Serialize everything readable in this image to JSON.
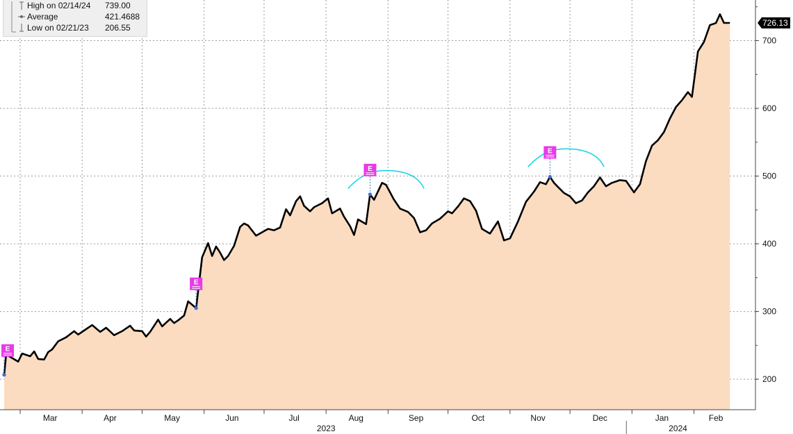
{
  "stats": {
    "high_label": "High on 02/14/24",
    "high_value": "739.00",
    "average_label": "Average",
    "average_value": "421.4688",
    "low_label": "Low on 02/21/23",
    "low_value": "206.55"
  },
  "colors": {
    "area_fill": "#fbdcc0",
    "line": "#000000",
    "earnings_badge": "#e83ae8",
    "earnings_point": "#3a6fd8",
    "annotation_arc": "#22d3e6",
    "grid": "#9a9a9a",
    "last_price_bg": "#000000"
  },
  "icons": {
    "earnings": "earnings-e-icon",
    "high": "high-marker-icon",
    "average": "average-marker-icon",
    "low": "low-marker-icon"
  },
  "chart_data": {
    "type": "area",
    "title": "",
    "xlabel": "",
    "ylabel": "",
    "ylim": [
      155,
      760
    ],
    "y_ticks": [
      "200",
      "300",
      "400",
      "500",
      "600",
      "700"
    ],
    "x_month_labels": [
      "Mar",
      "Apr",
      "May",
      "Jun",
      "Jul",
      "Aug",
      "Sep",
      "Oct",
      "Nov",
      "Dec",
      "Jan",
      "Feb"
    ],
    "year_labels": [
      "2023",
      "2024"
    ],
    "last_price_label": "726.13",
    "last_price": 726.13,
    "series": [
      {
        "points": [
          [
            "2023-02-21",
            206.55
          ],
          [
            "2023-02-22",
            237
          ],
          [
            "2023-02-24",
            233
          ],
          [
            "2023-02-28",
            226
          ],
          [
            "2023-03-02",
            238
          ],
          [
            "2023-03-06",
            234
          ],
          [
            "2023-03-08",
            241
          ],
          [
            "2023-03-10",
            230
          ],
          [
            "2023-03-13",
            229
          ],
          [
            "2023-03-15",
            240
          ],
          [
            "2023-03-17",
            244
          ],
          [
            "2023-03-20",
            256
          ],
          [
            "2023-03-24",
            262
          ],
          [
            "2023-03-28",
            271
          ],
          [
            "2023-03-30",
            266
          ],
          [
            "2023-04-03",
            274
          ],
          [
            "2023-04-06",
            280
          ],
          [
            "2023-04-10",
            270
          ],
          [
            "2023-04-13",
            276
          ],
          [
            "2023-04-17",
            265
          ],
          [
            "2023-04-21",
            271
          ],
          [
            "2023-04-25",
            279
          ],
          [
            "2023-04-27",
            272
          ],
          [
            "2023-05-01",
            271
          ],
          [
            "2023-05-03",
            263
          ],
          [
            "2023-05-05",
            270
          ],
          [
            "2023-05-09",
            288
          ],
          [
            "2023-05-11",
            278
          ],
          [
            "2023-05-15",
            289
          ],
          [
            "2023-05-17",
            283
          ],
          [
            "2023-05-19",
            287
          ],
          [
            "2023-05-22",
            294
          ],
          [
            "2023-05-24",
            315
          ],
          [
            "2023-05-28",
            305
          ],
          [
            "2023-05-31",
            380
          ],
          [
            "2023-06-03",
            401
          ],
          [
            "2023-06-05",
            382
          ],
          [
            "2023-06-07",
            396
          ],
          [
            "2023-06-09",
            387
          ],
          [
            "2023-06-11",
            376
          ],
          [
            "2023-06-13",
            382
          ],
          [
            "2023-06-16",
            397
          ],
          [
            "2023-06-19",
            425
          ],
          [
            "2023-06-21",
            430
          ],
          [
            "2023-06-23",
            427
          ],
          [
            "2023-06-27",
            412
          ],
          [
            "2023-06-30",
            417
          ],
          [
            "2023-07-03",
            422
          ],
          [
            "2023-07-06",
            420
          ],
          [
            "2023-07-09",
            424
          ],
          [
            "2023-07-12",
            451
          ],
          [
            "2023-07-14",
            442
          ],
          [
            "2023-07-17",
            463
          ],
          [
            "2023-07-19",
            470
          ],
          [
            "2023-07-21",
            456
          ],
          [
            "2023-07-24",
            448
          ],
          [
            "2023-07-26",
            454
          ],
          [
            "2023-07-30",
            460
          ],
          [
            "2023-08-02",
            467
          ],
          [
            "2023-08-04",
            445
          ],
          [
            "2023-08-08",
            452
          ],
          [
            "2023-08-10",
            440
          ],
          [
            "2023-08-13",
            426
          ],
          [
            "2023-08-15",
            413
          ],
          [
            "2023-08-17",
            436
          ],
          [
            "2023-08-21",
            429
          ],
          [
            "2023-08-23",
            473
          ],
          [
            "2023-08-25",
            465
          ],
          [
            "2023-08-29",
            490
          ],
          [
            "2023-08-31",
            487
          ],
          [
            "2023-09-04",
            465
          ],
          [
            "2023-09-07",
            452
          ],
          [
            "2023-09-11",
            447
          ],
          [
            "2023-09-14",
            438
          ],
          [
            "2023-09-17",
            417
          ],
          [
            "2023-09-20",
            420
          ],
          [
            "2023-09-23",
            430
          ],
          [
            "2023-09-27",
            437
          ],
          [
            "2023-10-01",
            448
          ],
          [
            "2023-10-03",
            445
          ],
          [
            "2023-10-06",
            455
          ],
          [
            "2023-10-09",
            467
          ],
          [
            "2023-10-12",
            463
          ],
          [
            "2023-10-15",
            449
          ],
          [
            "2023-10-18",
            422
          ],
          [
            "2023-10-22",
            415
          ],
          [
            "2023-10-26",
            433
          ],
          [
            "2023-10-29",
            405
          ],
          [
            "2023-11-01",
            408
          ],
          [
            "2023-11-05",
            433
          ],
          [
            "2023-11-09",
            462
          ],
          [
            "2023-11-13",
            477
          ],
          [
            "2023-11-16",
            491
          ],
          [
            "2023-11-19",
            488
          ],
          [
            "2023-11-21",
            499
          ],
          [
            "2023-11-23",
            490
          ],
          [
            "2023-11-25",
            484
          ],
          [
            "2023-11-28",
            475
          ],
          [
            "2023-12-01",
            470
          ],
          [
            "2023-12-04",
            460
          ],
          [
            "2023-12-07",
            464
          ],
          [
            "2023-12-10",
            476
          ],
          [
            "2023-12-13",
            485
          ],
          [
            "2023-12-16",
            498
          ],
          [
            "2023-12-19",
            485
          ],
          [
            "2023-12-22",
            490
          ],
          [
            "2023-12-26",
            494
          ],
          [
            "2023-12-29",
            493
          ],
          [
            "2024-01-02",
            476
          ],
          [
            "2024-01-05",
            488
          ],
          [
            "2024-01-08",
            522
          ],
          [
            "2024-01-11",
            545
          ],
          [
            "2024-01-14",
            553
          ],
          [
            "2024-01-17",
            565
          ],
          [
            "2024-01-20",
            585
          ],
          [
            "2024-01-23",
            602
          ],
          [
            "2024-01-26",
            612
          ],
          [
            "2024-01-29",
            624
          ],
          [
            "2024-01-31",
            617
          ],
          [
            "2024-02-03",
            684
          ],
          [
            "2024-02-06",
            698
          ],
          [
            "2024-02-09",
            723
          ],
          [
            "2024-02-12",
            726
          ],
          [
            "2024-02-14",
            739
          ],
          [
            "2024-02-16",
            726.13
          ],
          [
            "2024-02-19",
            726.13
          ]
        ]
      }
    ],
    "earnings_events": [
      {
        "label": "E",
        "date": "2023-02-21",
        "value": 206.55
      },
      {
        "label": "E",
        "date": "2023-05-28",
        "value": 305
      },
      {
        "label": "E",
        "date": "2023-08-23",
        "value": 473
      },
      {
        "label": "E",
        "date": "2023-11-21",
        "value": 499
      }
    ],
    "annotation_arcs": [
      {
        "from": "2023-08-12",
        "to": "2023-09-19",
        "value": 500
      },
      {
        "from": "2023-11-10",
        "to": "2023-12-18",
        "value": 532
      }
    ]
  }
}
